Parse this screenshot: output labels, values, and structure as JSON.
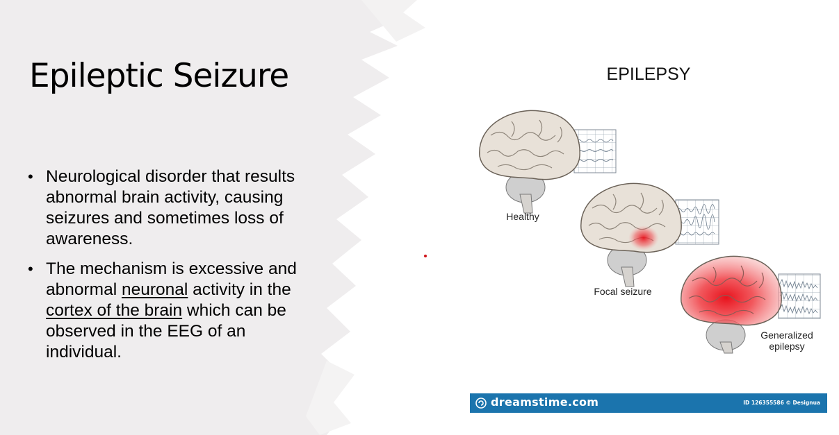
{
  "slide": {
    "title": "Epileptic Seizure",
    "bullets": [
      {
        "segments": [
          {
            "text": "Neurological disorder that results abnormal brain activity, causing seizures and sometimes loss of awareness.",
            "underline": false
          }
        ]
      },
      {
        "segments": [
          {
            "text": "The mechanism is excessive and abnormal ",
            "underline": false
          },
          {
            "text": "neuronal",
            "underline": true
          },
          {
            "text": " activity in the ",
            "underline": false
          },
          {
            "text": "cortex of the brain",
            "underline": true
          },
          {
            "text": " which can be observed in the  EEG of an individual.",
            "underline": false
          }
        ]
      }
    ],
    "bullet_symbol": "•"
  },
  "figure": {
    "title": "EPILEPSY",
    "labels": {
      "healthy": "Healthy",
      "focal": "Focal seizure",
      "generalized_line1": "Generalized",
      "generalized_line2": "epilepsy"
    },
    "banner": {
      "logo_text": "dreamstime.com",
      "id_text": "ID 126355586 © Designua",
      "color": "#1b74ad"
    }
  },
  "colors": {
    "background_texture": "#efedee",
    "brain_fill": "#e8e1d8",
    "seizure_red": "#e8121c"
  }
}
